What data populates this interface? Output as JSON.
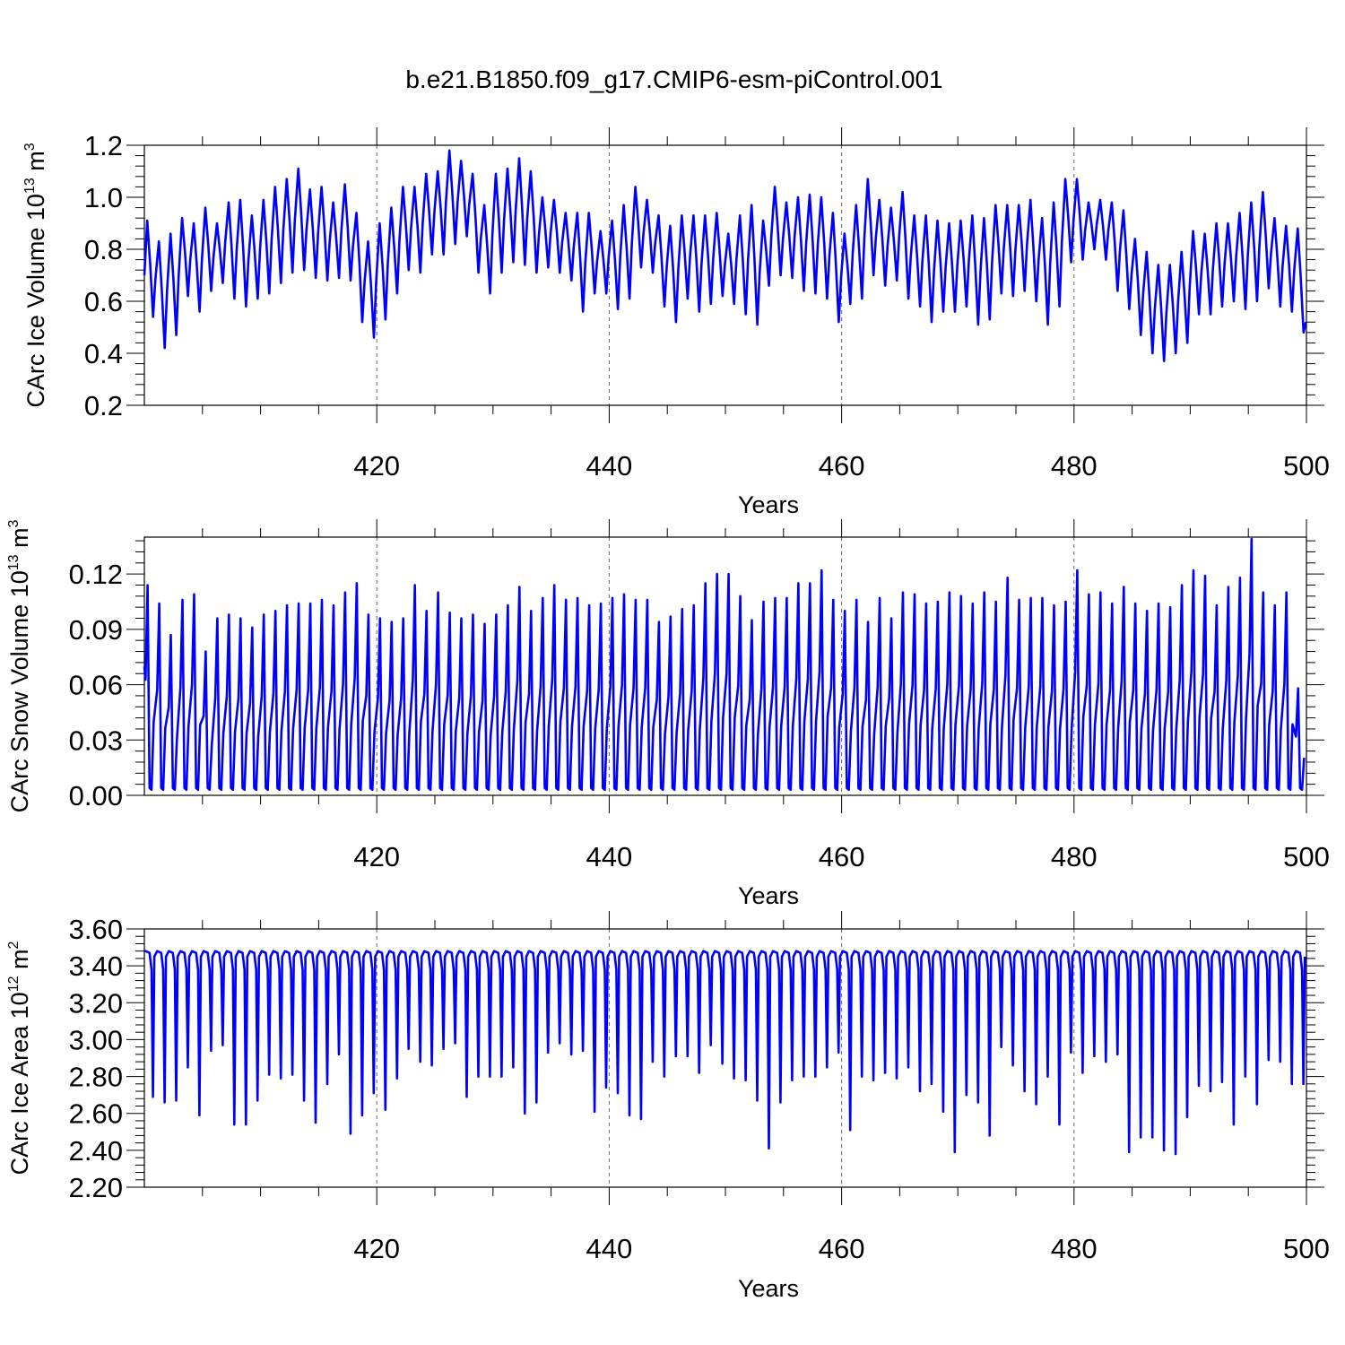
{
  "title": "b.e21.B1850.f09_g17.CMIP6-esm-piControl.001",
  "colors": {
    "series": "#0000ff",
    "frame": "#000000",
    "grid": "#666666"
  },
  "chart_data": [
    {
      "type": "line",
      "id": "ice-volume",
      "xlabel": "Years",
      "ylabel": "CArc Ice Volume 10",
      "ylabel_sup": "13",
      "ylabel_unit": " m",
      "ylabel_unit_sup": "3",
      "xlim": [
        400,
        500
      ],
      "ylim": [
        0.2,
        1.2
      ],
      "xticks": [
        420,
        440,
        460,
        480,
        500
      ],
      "xtick_labels": [
        "420",
        "440",
        "460",
        "480",
        "500"
      ],
      "yticks": [
        0.2,
        0.4,
        0.6,
        0.8,
        1.0,
        1.2
      ],
      "ytick_labels": [
        "0.2",
        "0.4",
        "0.6",
        "0.8",
        "1.0",
        "1.2"
      ],
      "vertical_reference_lines": [
        420,
        440,
        460,
        480
      ],
      "seasonal_cycle": "annual max in spring, min in autumn",
      "annual_max": [
        0.91,
        0.83,
        0.86,
        0.92,
        0.9,
        0.96,
        0.9,
        0.98,
        0.99,
        0.93,
        0.99,
        1.04,
        1.07,
        1.11,
        1.03,
        1.04,
        0.98,
        1.05,
        0.94,
        0.83,
        0.9,
        0.96,
        1.04,
        1.04,
        1.09,
        1.1,
        1.18,
        1.14,
        1.09,
        0.97,
        1.09,
        1.11,
        1.15,
        1.1,
        1.0,
        0.99,
        0.94,
        0.94,
        0.94,
        0.87,
        0.91,
        0.97,
        1.04,
        0.99,
        0.93,
        0.89,
        0.93,
        0.93,
        0.93,
        0.94,
        0.86,
        0.93,
        0.97,
        0.91,
        1.04,
        0.98,
        1.0,
        1.01,
        1.0,
        0.94,
        0.86,
        0.97,
        1.07,
        0.99,
        0.96,
        1.02,
        0.93,
        0.93,
        0.91,
        0.9,
        0.91,
        0.93,
        0.92,
        0.97,
        0.97,
        0.97,
        0.99,
        0.92,
        0.98,
        1.07,
        1.07,
        0.98,
        0.99,
        0.98,
        0.95,
        0.84,
        0.79,
        0.74,
        0.74,
        0.79,
        0.87,
        0.86,
        0.9,
        0.9,
        0.94,
        0.98,
        1.02,
        0.92,
        0.89,
        0.88
      ],
      "annual_min": [
        0.54,
        0.42,
        0.47,
        0.62,
        0.56,
        0.64,
        0.67,
        0.61,
        0.58,
        0.61,
        0.63,
        0.67,
        0.71,
        0.72,
        0.69,
        0.68,
        0.69,
        0.68,
        0.52,
        0.46,
        0.53,
        0.63,
        0.72,
        0.71,
        0.78,
        0.78,
        0.82,
        0.85,
        0.71,
        0.63,
        0.71,
        0.75,
        0.74,
        0.71,
        0.73,
        0.71,
        0.68,
        0.56,
        0.63,
        0.63,
        0.57,
        0.61,
        0.73,
        0.71,
        0.58,
        0.52,
        0.61,
        0.56,
        0.59,
        0.62,
        0.59,
        0.55,
        0.51,
        0.66,
        0.7,
        0.69,
        0.64,
        0.63,
        0.61,
        0.52,
        0.59,
        0.61,
        0.7,
        0.66,
        0.68,
        0.61,
        0.58,
        0.52,
        0.56,
        0.56,
        0.58,
        0.51,
        0.53,
        0.63,
        0.62,
        0.64,
        0.6,
        0.51,
        0.58,
        0.75,
        0.76,
        0.8,
        0.76,
        0.64,
        0.57,
        0.47,
        0.4,
        0.37,
        0.4,
        0.44,
        0.55,
        0.55,
        0.58,
        0.6,
        0.57,
        0.6,
        0.65,
        0.58,
        0.56,
        0.48
      ],
      "start_value": 0.7
    },
    {
      "type": "line",
      "id": "snow-volume",
      "xlabel": "Years",
      "ylabel": "CArc Snow Volume 10",
      "ylabel_sup": "13",
      "ylabel_unit": " m",
      "ylabel_unit_sup": "3",
      "xlim": [
        400,
        500
      ],
      "ylim": [
        0.0,
        0.14
      ],
      "xticks": [
        420,
        440,
        460,
        480,
        500
      ],
      "xtick_labels": [
        "420",
        "440",
        "460",
        "480",
        "500"
      ],
      "yticks": [
        0.0,
        0.03,
        0.06,
        0.09,
        0.12
      ],
      "ytick_labels": [
        "0.00",
        "0.03",
        "0.06",
        "0.09",
        "0.12"
      ],
      "vertical_reference_lines": [
        420,
        440,
        460,
        480
      ],
      "seasonal_cycle": "annual max in spring, near zero in late summer",
      "annual_max": [
        0.114,
        0.104,
        0.087,
        0.106,
        0.109,
        0.078,
        0.096,
        0.098,
        0.096,
        0.091,
        0.098,
        0.1,
        0.103,
        0.104,
        0.104,
        0.106,
        0.103,
        0.11,
        0.115,
        0.098,
        0.096,
        0.094,
        0.096,
        0.114,
        0.1,
        0.11,
        0.099,
        0.096,
        0.098,
        0.093,
        0.098,
        0.103,
        0.113,
        0.1,
        0.107,
        0.114,
        0.106,
        0.107,
        0.103,
        0.104,
        0.107,
        0.109,
        0.106,
        0.106,
        0.094,
        0.097,
        0.101,
        0.103,
        0.115,
        0.12,
        0.12,
        0.108,
        0.095,
        0.105,
        0.107,
        0.107,
        0.115,
        0.115,
        0.122,
        0.106,
        0.1,
        0.106,
        0.094,
        0.107,
        0.096,
        0.11,
        0.109,
        0.104,
        0.105,
        0.11,
        0.108,
        0.104,
        0.11,
        0.105,
        0.118,
        0.106,
        0.107,
        0.107,
        0.103,
        0.105,
        0.122,
        0.109,
        0.11,
        0.104,
        0.113,
        0.104,
        0.1,
        0.104,
        0.102,
        0.114,
        0.122,
        0.119,
        0.103,
        0.113,
        0.118,
        0.139,
        0.11,
        0.103,
        0.11,
        0.058
      ],
      "start_value": 0.07
    },
    {
      "type": "line",
      "id": "ice-area",
      "xlabel": "Years",
      "ylabel": "CArc Ice Area 10",
      "ylabel_sup": "12",
      "ylabel_unit": " m",
      "ylabel_unit_sup": "2",
      "xlim": [
        400,
        500
      ],
      "ylim": [
        2.2,
        3.6
      ],
      "xticks": [
        420,
        440,
        460,
        480,
        500
      ],
      "xtick_labels": [
        "420",
        "440",
        "460",
        "480",
        "500"
      ],
      "yticks": [
        2.2,
        2.4,
        2.6,
        2.8,
        3.0,
        3.2,
        3.4,
        3.6
      ],
      "ytick_labels": [
        "2.20",
        "2.40",
        "2.60",
        "2.80",
        "3.00",
        "3.20",
        "3.40",
        "3.60"
      ],
      "vertical_reference_lines": [
        420,
        440,
        460,
        480
      ],
      "seasonal_cycle": "plateau near 3.48 most of year, sharp minimum in autumn",
      "annual_max": 3.48,
      "annual_min": [
        2.69,
        2.66,
        2.67,
        2.85,
        2.59,
        2.94,
        2.97,
        2.54,
        2.54,
        2.67,
        2.81,
        2.79,
        2.81,
        2.67,
        2.55,
        2.76,
        2.92,
        2.49,
        2.59,
        2.71,
        2.62,
        2.79,
        2.95,
        2.88,
        2.86,
        2.95,
        2.98,
        2.69,
        2.8,
        2.8,
        2.8,
        2.85,
        2.6,
        2.66,
        2.93,
        2.98,
        2.92,
        2.94,
        2.61,
        2.74,
        2.71,
        2.59,
        2.57,
        2.88,
        2.8,
        2.91,
        2.91,
        2.82,
        2.97,
        2.87,
        2.79,
        2.78,
        2.67,
        2.41,
        2.66,
        2.78,
        2.8,
        2.8,
        2.85,
        2.93,
        2.51,
        2.8,
        2.78,
        2.82,
        2.79,
        2.85,
        2.72,
        2.76,
        2.61,
        2.39,
        2.7,
        2.66,
        2.48,
        2.96,
        2.86,
        2.72,
        2.65,
        2.8,
        2.54,
        2.93,
        2.82,
        2.91,
        2.88,
        2.92,
        2.39,
        2.47,
        2.47,
        2.4,
        2.38,
        2.58,
        2.75,
        2.72,
        2.77,
        2.54,
        2.8,
        2.65,
        2.89,
        2.88,
        2.76,
        2.76
      ],
      "start_value": 3.48
    }
  ]
}
